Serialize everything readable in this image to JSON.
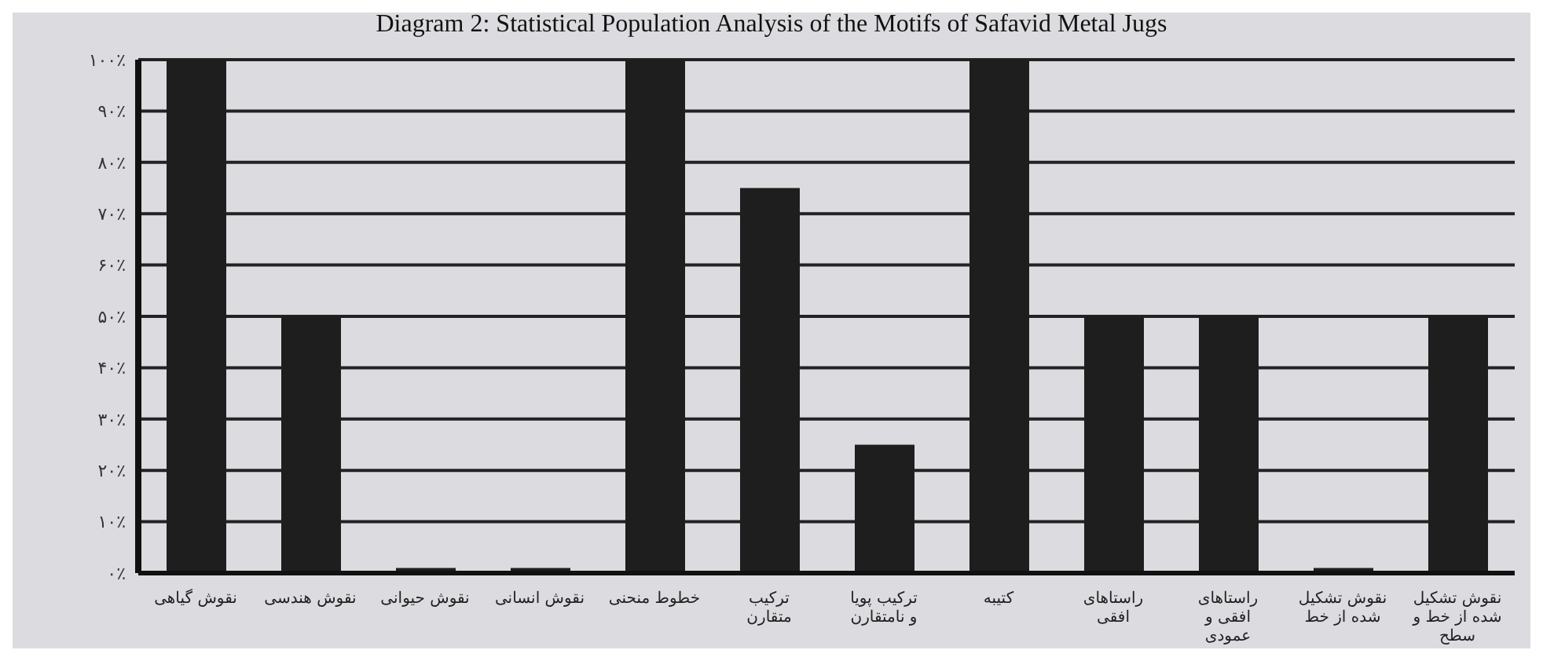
{
  "chart_data": {
    "type": "bar",
    "title": "Diagram 2: Statistical Population Analysis of the Motifs of Safavid Metal Jugs",
    "categories": [
      "نقوش گیاهی",
      "نقوش هندسی",
      "نقوش حیوانی",
      "نقوش انسانی",
      "خطوط منحنی",
      "ترکیب متقارن",
      "ترکیب پویا و نامتقارن",
      "کتیبه",
      "راستاهای افقی",
      "راستاهای افقی و عمودی",
      "نقوش تشکیل شده از خط",
      "نقوش تشکیل شده از خط و سطح"
    ],
    "values": [
      100,
      50,
      1,
      1,
      100,
      75,
      25,
      100,
      50,
      50,
      1,
      50
    ],
    "color": "#1e1e1e",
    "ylim": [
      0,
      100
    ],
    "yticks": [
      {
        "value": 0,
        "label": "۰٪"
      },
      {
        "value": 10,
        "label": "۱۰٪"
      },
      {
        "value": 20,
        "label": "۲۰٪"
      },
      {
        "value": 30,
        "label": "۳۰٪"
      },
      {
        "value": 40,
        "label": "۴۰٪"
      },
      {
        "value": 50,
        "label": "۵۰٪"
      },
      {
        "value": 60,
        "label": "۶۰٪"
      },
      {
        "value": 70,
        "label": "۷۰٪"
      },
      {
        "value": 80,
        "label": "۸۰٪"
      },
      {
        "value": 90,
        "label": "۹۰٪"
      },
      {
        "value": 100,
        "label": "۱۰۰٪"
      }
    ],
    "grid": "y"
  }
}
